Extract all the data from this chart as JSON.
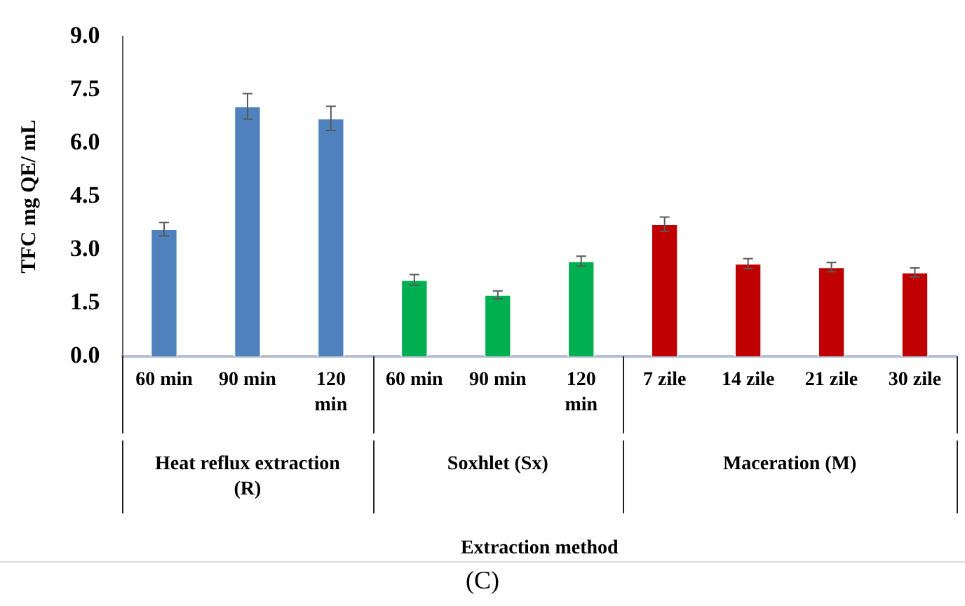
{
  "chart_data": {
    "type": "bar",
    "ylabel": "TFC mg QE/ mL",
    "categories": [
      "60 min",
      "90 min",
      "120 min",
      "60 min",
      "90 min",
      "120 min",
      "7 zile",
      "14 zile",
      "21 zile",
      "30 zile"
    ],
    "series": [
      {
        "color": "#4f81bd",
        "values": [
          3.58,
          7.04,
          6.7,
          null,
          null,
          null,
          null,
          null,
          null,
          null
        ],
        "errors": [
          0.19,
          0.36,
          0.34,
          null,
          null,
          null,
          null,
          null,
          null,
          null
        ]
      },
      {
        "color": "#00b050",
        "values": [
          null,
          null,
          null,
          2.15,
          1.73,
          2.68,
          null,
          null,
          null,
          null
        ],
        "errors": [
          null,
          null,
          null,
          0.15,
          0.11,
          0.14,
          null,
          null,
          null,
          null
        ]
      },
      {
        "color": "#c00000",
        "values": [
          null,
          null,
          null,
          null,
          null,
          null,
          3.72,
          2.61,
          2.51,
          2.36
        ],
        "errors": [
          null,
          null,
          null,
          null,
          null,
          null,
          0.2,
          0.14,
          0.13,
          0.13
        ]
      }
    ],
    "ylim": [
      0,
      9
    ],
    "yticks": [
      {
        "value": 0,
        "label": "0.0"
      },
      {
        "value": 1.5,
        "label": "1.5"
      },
      {
        "value": 3,
        "label": "3.0"
      },
      {
        "value": 4.5,
        "label": "4.5"
      },
      {
        "value": 6,
        "label": "6.0"
      },
      {
        "value": 7.5,
        "label": "7.5"
      },
      {
        "value": 9,
        "label": "9.0"
      }
    ],
    "grid": false,
    "legend": false,
    "annotations": [
      "Heat reflux extraction (R)",
      "Soxhlet (Sx)",
      "Maceration (M)",
      "Extraction method",
      "(C)"
    ]
  }
}
